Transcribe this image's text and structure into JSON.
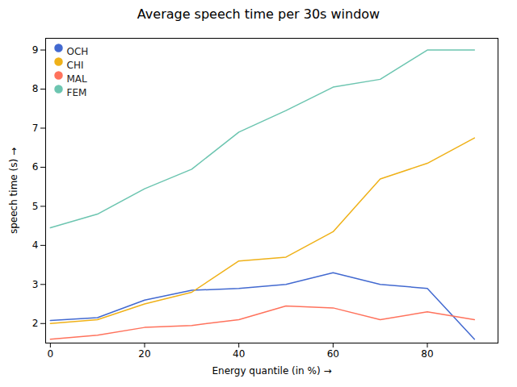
{
  "chart_data": {
    "type": "line",
    "title": "Average speech time per 30s window",
    "xlabel": "Energy quantile (in %)",
    "ylabel": "speech time (s)",
    "x": [
      0,
      10,
      20,
      30,
      40,
      50,
      60,
      70,
      80,
      90
    ],
    "series": [
      {
        "name": "OCH",
        "values": [
          2.08,
          2.15,
          2.6,
          2.85,
          2.9,
          3.0,
          3.3,
          3.0,
          2.9,
          1.6
        ]
      },
      {
        "name": "CHI",
        "values": [
          2.0,
          2.1,
          2.5,
          2.8,
          3.6,
          3.7,
          4.35,
          5.7,
          6.1,
          6.75
        ]
      },
      {
        "name": "MAL",
        "values": [
          1.6,
          1.7,
          1.9,
          1.95,
          2.1,
          2.45,
          2.4,
          2.1,
          2.3,
          2.1
        ]
      },
      {
        "name": "FEM",
        "values": [
          4.45,
          4.8,
          5.45,
          5.95,
          6.9,
          7.45,
          8.05,
          8.25,
          9.0,
          9.0
        ]
      }
    ],
    "xlim": [
      -1,
      95
    ],
    "ylim": [
      1.5,
      9.3
    ],
    "xticks": [
      0,
      20,
      40,
      60,
      80
    ],
    "yticks": [
      2,
      3,
      4,
      5,
      6,
      7,
      8,
      9
    ],
    "grid": false,
    "legend": "upper left"
  }
}
